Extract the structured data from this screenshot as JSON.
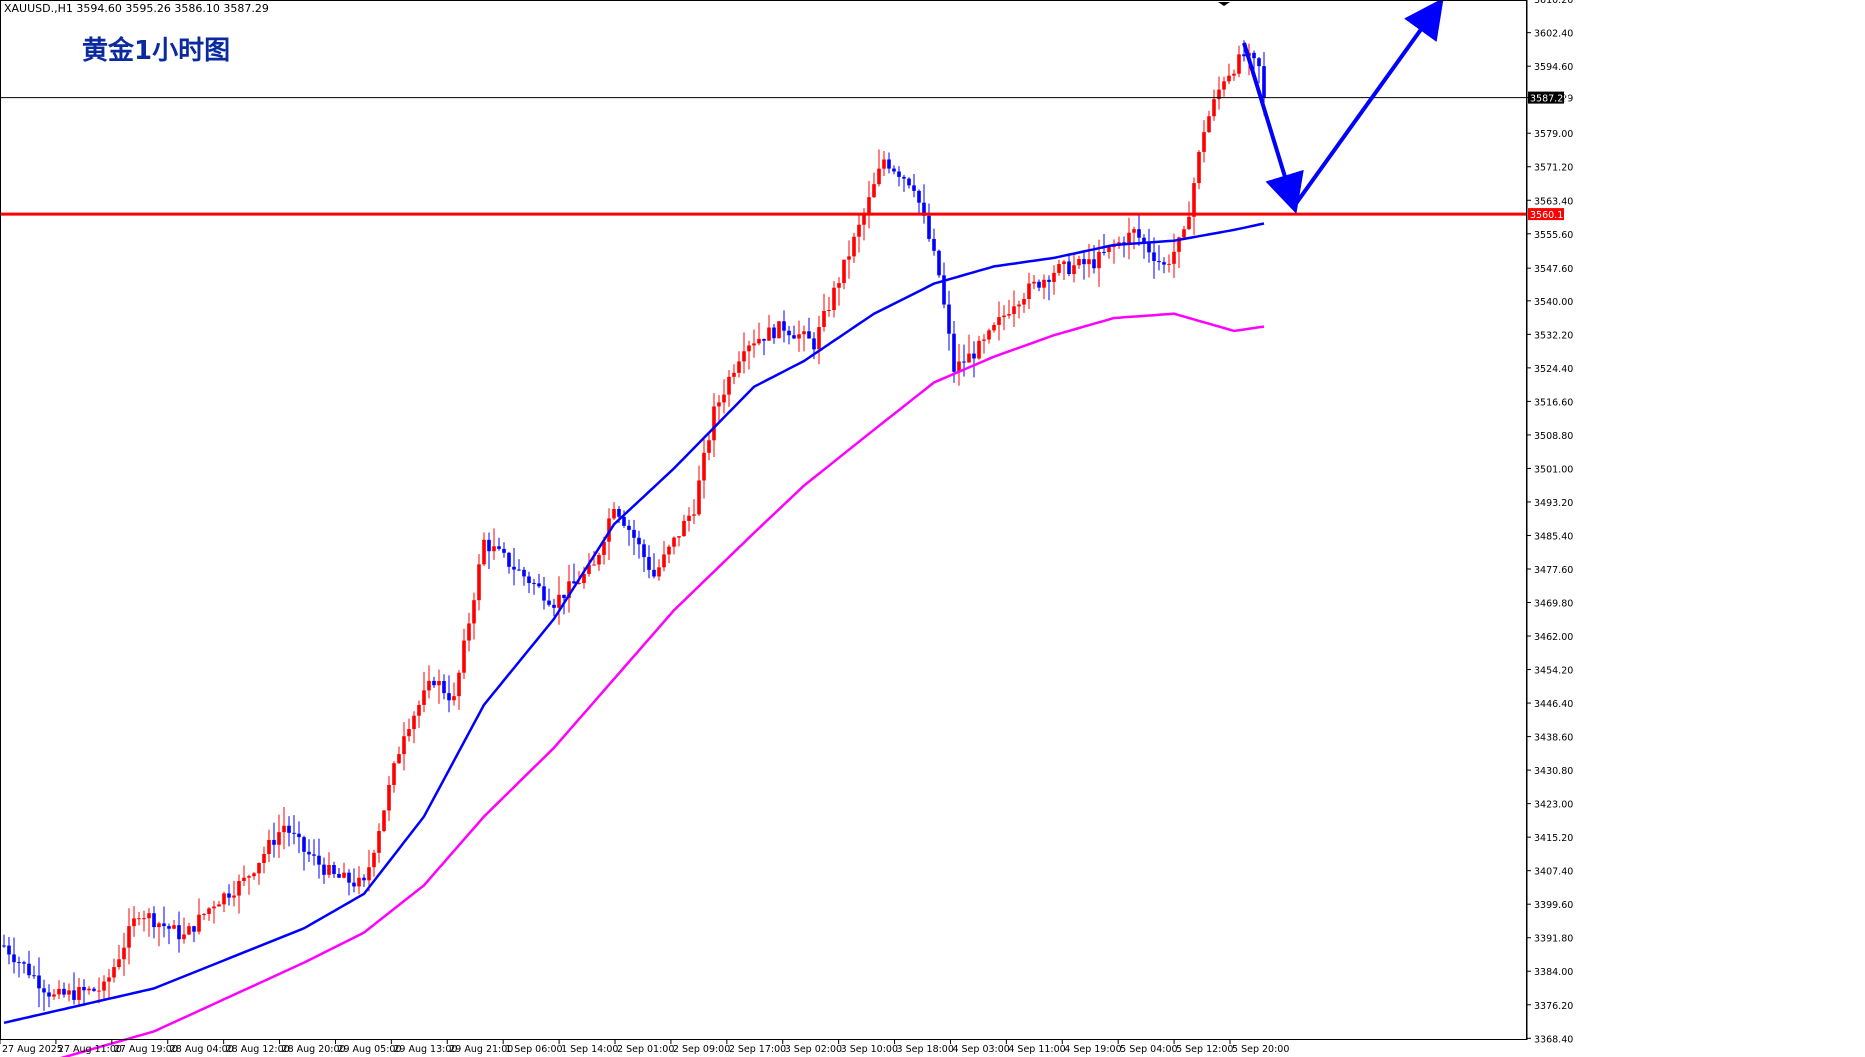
{
  "header": {
    "symbol_timeframe": "XAUUSD.,H1",
    "ohlc": "3594.60 3595.26 3586.10 3587.29"
  },
  "title": "黄金1小时图",
  "colors": {
    "background": "#ffffff",
    "bull_candle": "#ff0000",
    "bear_candle": "#0000ff",
    "ma_fast": "#0000ff",
    "ma_slow": "#ff00ff",
    "support_line": "#ff0000",
    "arrow": "#0000ff",
    "current_price_tag": "#000000"
  },
  "chart_data": {
    "type": "candlestick",
    "ylim": [
      3368.0,
      3610.0
    ],
    "y_ticks": [
      "3610.20",
      "3602.40",
      "3594.60",
      "3587.29",
      "3579.00",
      "3571.20",
      "3563.40",
      "3555.60",
      "3547.60",
      "3540.00",
      "3532.20",
      "3524.40",
      "3516.60",
      "3508.80",
      "3501.00",
      "3493.20",
      "3485.40",
      "3477.60",
      "3469.80",
      "3462.00",
      "3454.20",
      "3446.40",
      "3438.60",
      "3430.80",
      "3423.00",
      "3415.20",
      "3407.40",
      "3399.60",
      "3391.80",
      "3384.00",
      "3376.20",
      "3368.40"
    ],
    "x_tick_labels": [
      "27 Aug 2025",
      "27 Aug 11:00",
      "27 Aug 19:00",
      "28 Aug 04:00",
      "28 Aug 12:00",
      "28 Aug 20:00",
      "29 Aug 05:00",
      "29 Aug 13:00",
      "29 Aug 21:00",
      "1 Sep 06:00",
      "1 Sep 14:00",
      "2 Sep 01:00",
      "2 Sep 09:00",
      "2 Sep 17:00",
      "3 Sep 02:00",
      "3 Sep 10:00",
      "3 Sep 18:00",
      "4 Sep 03:00",
      "4 Sep 11:00",
      "4 Sep 19:00",
      "5 Sep 04:00",
      "5 Sep 12:00",
      "5 Sep 20:00"
    ],
    "horizontal_levels": [
      {
        "label": "3587.29",
        "value": 3587.29,
        "color": "#000000"
      },
      {
        "label": "3560.18",
        "value": 3560.18,
        "color": "#ff0000"
      }
    ],
    "candles_note": "approximate values reconstructed from shape",
    "candle_anchors": [
      [
        0,
        3390
      ],
      [
        10,
        3378
      ],
      [
        20,
        3380
      ],
      [
        27,
        3398
      ],
      [
        36,
        3392
      ],
      [
        42,
        3400
      ],
      [
        48,
        3405
      ],
      [
        56,
        3418
      ],
      [
        60,
        3412
      ],
      [
        66,
        3406
      ],
      [
        72,
        3404
      ],
      [
        76,
        3422
      ],
      [
        80,
        3440
      ],
      [
        86,
        3452
      ],
      [
        90,
        3447
      ],
      [
        96,
        3484
      ],
      [
        104,
        3476
      ],
      [
        110,
        3470
      ],
      [
        118,
        3478
      ],
      [
        122,
        3493
      ],
      [
        126,
        3485
      ],
      [
        130,
        3476
      ],
      [
        138,
        3492
      ],
      [
        142,
        3514
      ],
      [
        148,
        3530
      ],
      [
        156,
        3534
      ],
      [
        162,
        3530
      ],
      [
        168,
        3548
      ],
      [
        172,
        3560
      ],
      [
        176,
        3573
      ],
      [
        182,
        3567
      ],
      [
        187,
        3546
      ],
      [
        190,
        3524
      ],
      [
        196,
        3530
      ],
      [
        202,
        3540
      ],
      [
        210,
        3547
      ],
      [
        218,
        3549
      ],
      [
        226,
        3556
      ],
      [
        232,
        3548
      ],
      [
        236,
        3555
      ],
      [
        240,
        3580
      ],
      [
        244,
        3592
      ],
      [
        248,
        3597
      ],
      [
        251,
        3594
      ],
      [
        252,
        3587.29
      ]
    ],
    "ma_fast_anchors": [
      [
        0,
        3372
      ],
      [
        30,
        3380
      ],
      [
        60,
        3394
      ],
      [
        72,
        3402
      ],
      [
        84,
        3420
      ],
      [
        96,
        3446
      ],
      [
        110,
        3466
      ],
      [
        122,
        3488
      ],
      [
        134,
        3501
      ],
      [
        150,
        3520
      ],
      [
        160,
        3526
      ],
      [
        174,
        3537
      ],
      [
        186,
        3544
      ],
      [
        198,
        3548
      ],
      [
        210,
        3550
      ],
      [
        222,
        3553
      ],
      [
        234,
        3554
      ],
      [
        246,
        3556.5
      ],
      [
        252,
        3558
      ]
    ],
    "ma_slow_anchors": [
      [
        0,
        3360
      ],
      [
        30,
        3370
      ],
      [
        60,
        3386
      ],
      [
        72,
        3393
      ],
      [
        84,
        3404
      ],
      [
        96,
        3420
      ],
      [
        110,
        3436
      ],
      [
        122,
        3452
      ],
      [
        134,
        3468
      ],
      [
        150,
        3486
      ],
      [
        160,
        3497
      ],
      [
        174,
        3510
      ],
      [
        186,
        3521
      ],
      [
        198,
        3527
      ],
      [
        210,
        3532
      ],
      [
        222,
        3536
      ],
      [
        234,
        3537
      ],
      [
        246,
        3533
      ],
      [
        252,
        3534
      ]
    ],
    "projection_arrows": [
      {
        "from": [
          248,
          3600
        ],
        "to": [
          258,
          3562
        ]
      },
      {
        "from": [
          258,
          3562
        ],
        "to": [
          287,
          3609
        ]
      }
    ]
  }
}
